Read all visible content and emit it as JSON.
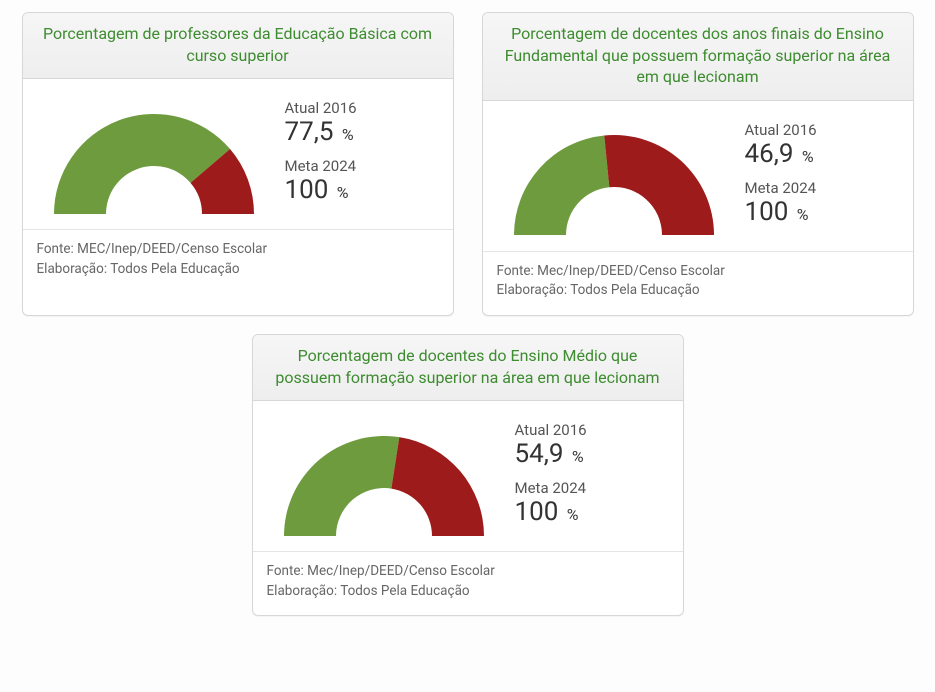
{
  "global": {
    "title_color": "#3d8c2f",
    "current_label": "Atual 2016",
    "goal_label": "Meta 2024",
    "percent_symbol": "%",
    "gauge_green": "#6e9b3d",
    "gauge_red": "#9e1b1b",
    "card_bg": "#ffffff",
    "header_bg": "#eeeeee",
    "border_color": "#d7d7d7",
    "gauge_outer_radius": 100,
    "gauge_inner_radius": 48,
    "font_family": "sans-serif",
    "title_fontsize": 16,
    "value_fontsize": 26,
    "label_fontsize": 15,
    "footer_fontsize": 13.5
  },
  "cards": [
    {
      "title": "Porcentagem de professores da Educação Básica com curso superior",
      "current_value": "77,5",
      "current_pct": 77.5,
      "goal_value": "100",
      "goal_pct": 100,
      "source_line": "Fonte: MEC/Inep/DEED/Censo Escolar",
      "elab_line": "Elaboração: Todos Pela Educação"
    },
    {
      "title": "Porcentagem de docentes dos anos finais do Ensino Fundamental que possuem formação superior na área em que lecionam",
      "current_value": "46,9",
      "current_pct": 46.9,
      "goal_value": "100",
      "goal_pct": 100,
      "source_line": "Fonte: Mec/Inep/DEED/Censo Escolar",
      "elab_line": "Elaboração: Todos Pela Educação"
    },
    {
      "title": "Porcentagem de docentes do Ensino Médio que possuem formação superior na área em que lecionam",
      "current_value": "54,9",
      "current_pct": 54.9,
      "goal_value": "100",
      "goal_pct": 100,
      "source_line": "Fonte: Mec/Inep/DEED/Censo Escolar",
      "elab_line": "Elaboração: Todos Pela Educação"
    }
  ]
}
